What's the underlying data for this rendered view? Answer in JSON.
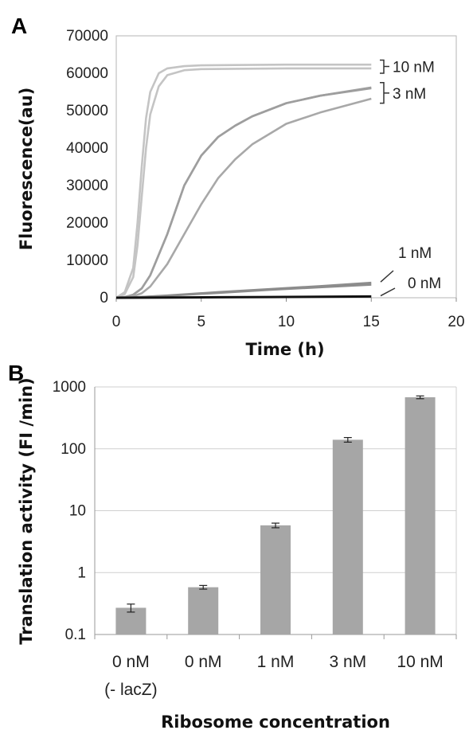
{
  "chart_data": [
    {
      "panel": "A",
      "type": "line",
      "xlabel": "Time (h)",
      "ylabel": "Fluorescence(au)",
      "xlim": [
        0,
        20
      ],
      "ylim": [
        0,
        70000
      ],
      "xticks": [
        0,
        5,
        10,
        15,
        20
      ],
      "yticks": [
        0,
        10000,
        20000,
        30000,
        40000,
        50000,
        60000,
        70000
      ],
      "grid": false,
      "series": [
        {
          "name": "10 nM",
          "color": "#c4c4c4",
          "x": [
            0,
            0.5,
            1,
            1.25,
            1.5,
            1.75,
            2,
            2.5,
            3,
            4,
            5,
            7,
            10,
            15
          ],
          "y": [
            0,
            1500,
            8000,
            20000,
            35000,
            48000,
            55000,
            60000,
            61300,
            61900,
            62100,
            62200,
            62300,
            62300
          ]
        },
        {
          "name": "10 nM",
          "color": "#c4c4c4",
          "x": [
            0,
            0.5,
            1,
            1.25,
            1.5,
            1.75,
            2,
            2.5,
            3,
            4,
            5,
            7,
            10,
            15
          ],
          "y": [
            0,
            1000,
            5500,
            14000,
            27000,
            40000,
            49000,
            56500,
            59500,
            60800,
            61100,
            61200,
            61300,
            61300
          ]
        },
        {
          "name": "3 nM",
          "color": "#9e9e9e",
          "x": [
            0,
            0.5,
            1,
            1.5,
            2,
            3,
            4,
            5,
            6,
            7,
            8,
            10,
            12,
            15
          ],
          "y": [
            0,
            200,
            800,
            2500,
            6000,
            17000,
            30000,
            38000,
            43000,
            46000,
            48500,
            52000,
            54000,
            56200
          ]
        },
        {
          "name": "3 nM",
          "color": "#9e9e9e",
          "x": [
            0,
            0.5,
            1,
            1.5,
            2,
            3,
            4,
            5,
            6,
            7,
            8,
            10,
            12,
            15
          ],
          "y": [
            0,
            200,
            800,
            2500,
            6000,
            17000,
            30000,
            38000,
            43000,
            46000,
            48500,
            52000,
            54000,
            56000
          ]
        },
        {
          "name": "3 nM",
          "color": "#a8a8a8",
          "x": [
            0,
            0.5,
            1,
            1.5,
            2,
            3,
            4,
            5,
            6,
            7,
            8,
            10,
            12,
            15
          ],
          "y": [
            0,
            100,
            400,
            1200,
            3000,
            9000,
            17000,
            25000,
            32000,
            37000,
            41000,
            46500,
            49500,
            53200
          ]
        },
        {
          "name": "1 nM",
          "color": "#8c8c8c",
          "x": [
            0,
            1,
            3,
            6,
            9,
            12,
            15
          ],
          "y": [
            0,
            100,
            600,
            1500,
            2300,
            3100,
            4000
          ]
        },
        {
          "name": "1 nM",
          "color": "#8c8c8c",
          "x": [
            0,
            1,
            3,
            6,
            9,
            12,
            15
          ],
          "y": [
            0,
            80,
            500,
            1300,
            2100,
            2800,
            3500
          ]
        },
        {
          "name": "0 nM",
          "color": "#111111",
          "x": [
            0,
            3,
            6,
            9,
            12,
            15
          ],
          "y": [
            0,
            50,
            120,
            200,
            280,
            350
          ]
        }
      ],
      "annotations": [
        "10 nM",
        "3 nM",
        "1 nM",
        "0 nM"
      ]
    },
    {
      "panel": "B",
      "type": "bar",
      "xlabel": "Ribosome concentration",
      "ylabel": "Translation activity (FI /min)",
      "yscale": "log",
      "ylim": [
        0.1,
        1000
      ],
      "yticks": [
        0.1,
        1,
        10,
        100,
        1000
      ],
      "ytick_labels": [
        "0.1",
        "1",
        "10",
        "100",
        "1000"
      ],
      "grid": true,
      "bar_color": "#a6a6a6",
      "categories": [
        "0 nM",
        "0 nM",
        "1 nM",
        "3 nM",
        "10 nM"
      ],
      "category_sublabels": [
        "(- lacZ)",
        "",
        "",
        "",
        ""
      ],
      "values": [
        0.27,
        0.58,
        5.8,
        140,
        680
      ],
      "errors": [
        0.04,
        0.04,
        0.5,
        12,
        35
      ]
    }
  ]
}
